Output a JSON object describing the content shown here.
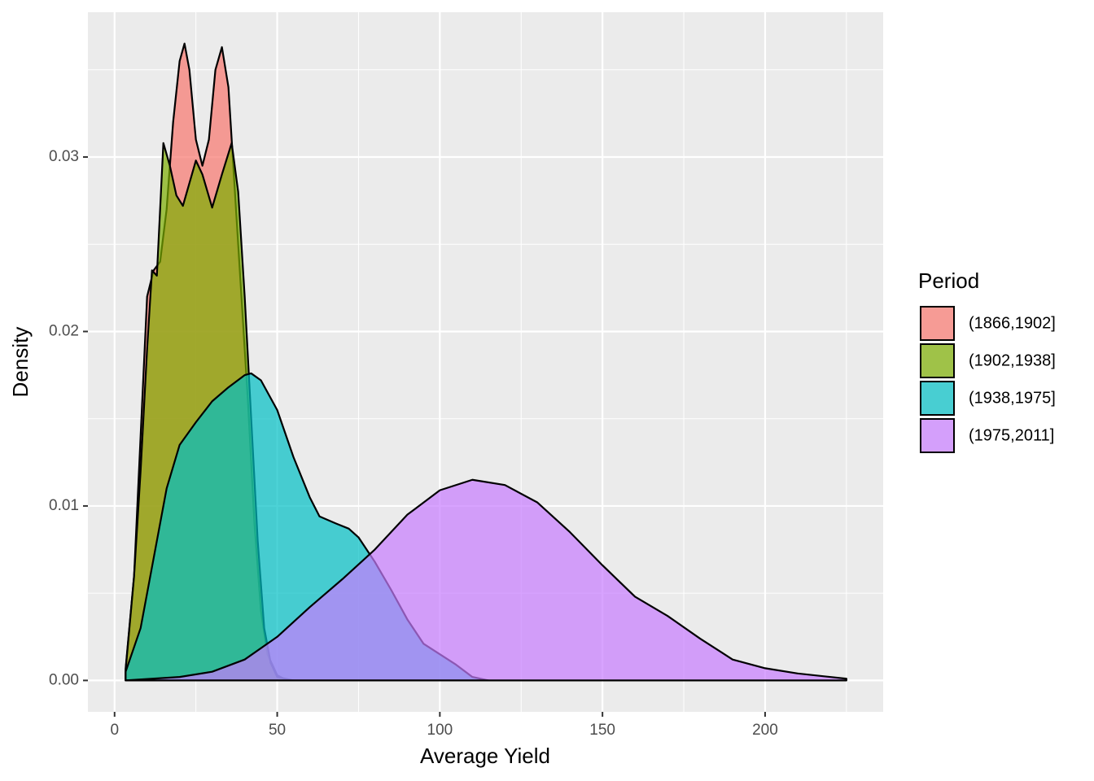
{
  "chart_data": {
    "type": "density",
    "x_label": "Average Yield",
    "y_label": "Density",
    "xlim": [
      -8.2,
      236.3
    ],
    "ylim": [
      -0.0018,
      0.0383
    ],
    "xticks": [
      0,
      50,
      100,
      150,
      200
    ],
    "yticks": [
      {
        "value": 0,
        "label": "0.00"
      },
      0.01,
      0.02,
      0.03
    ],
    "x_minor_grid": [
      25,
      75,
      125,
      175,
      225
    ],
    "y_minor_grid": [
      0.005,
      0.015,
      0.025,
      0.035
    ],
    "grid": true,
    "fill_opacity": 0.7,
    "legend": {
      "title": "Period",
      "position": "right"
    },
    "series": [
      {
        "name": "(1866,1902]",
        "color": "#F8766D",
        "x": [
          3.4,
          6,
          8,
          10,
          12,
          14,
          16,
          18,
          20,
          21.5,
          23,
          25,
          27,
          29,
          31,
          33,
          35,
          37,
          39,
          41,
          43,
          45,
          47,
          50,
          53
        ],
        "values": [
          0.0007,
          0.006,
          0.014,
          0.022,
          0.0235,
          0.024,
          0.027,
          0.032,
          0.0355,
          0.0365,
          0.035,
          0.031,
          0.0295,
          0.031,
          0.035,
          0.0363,
          0.034,
          0.028,
          0.022,
          0.016,
          0.009,
          0.004,
          0.0015,
          0.0003,
          0
        ]
      },
      {
        "name": "(1902,1938]",
        "color": "#7CAE00",
        "x": [
          3.4,
          6,
          8,
          10,
          11.5,
          13,
          15,
          17,
          19,
          21,
          23,
          25,
          27,
          30,
          33,
          36,
          38,
          40,
          42,
          44,
          46,
          48,
          50,
          55
        ],
        "values": [
          0.0006,
          0.006,
          0.012,
          0.019,
          0.0235,
          0.0232,
          0.0308,
          0.0295,
          0.0278,
          0.0272,
          0.0285,
          0.0298,
          0.029,
          0.0271,
          0.029,
          0.0308,
          0.028,
          0.022,
          0.015,
          0.008,
          0.003,
          0.001,
          0.0002,
          0
        ]
      },
      {
        "name": "(1938,1975]",
        "color": "#00BFC4",
        "x": [
          3.4,
          8,
          12,
          16,
          20,
          25,
          30,
          35,
          40,
          42,
          45,
          50,
          55,
          60,
          63,
          68,
          72,
          75,
          80,
          85,
          90,
          95,
          100,
          105,
          110,
          115
        ],
        "values": [
          0.0005,
          0.003,
          0.007,
          0.011,
          0.0135,
          0.0148,
          0.016,
          0.0168,
          0.0175,
          0.0176,
          0.0172,
          0.0155,
          0.0128,
          0.0105,
          0.0094,
          0.009,
          0.0087,
          0.0082,
          0.0068,
          0.0052,
          0.0035,
          0.0021,
          0.0015,
          0.0009,
          0.0002,
          0
        ]
      },
      {
        "name": "(1975,2011]",
        "color": "#C77CFF",
        "x": [
          3.4,
          20,
          30,
          40,
          50,
          60,
          70,
          80,
          90,
          100,
          110,
          120,
          130,
          140,
          150,
          160,
          170,
          180,
          190,
          200,
          210,
          225
        ],
        "values": [
          0,
          0.0002,
          0.0005,
          0.0012,
          0.0025,
          0.0042,
          0.0058,
          0.0075,
          0.0095,
          0.0109,
          0.0115,
          0.0112,
          0.0102,
          0.0085,
          0.0066,
          0.0048,
          0.0037,
          0.0024,
          0.0012,
          0.0007,
          0.0004,
          0.0001
        ]
      }
    ]
  }
}
